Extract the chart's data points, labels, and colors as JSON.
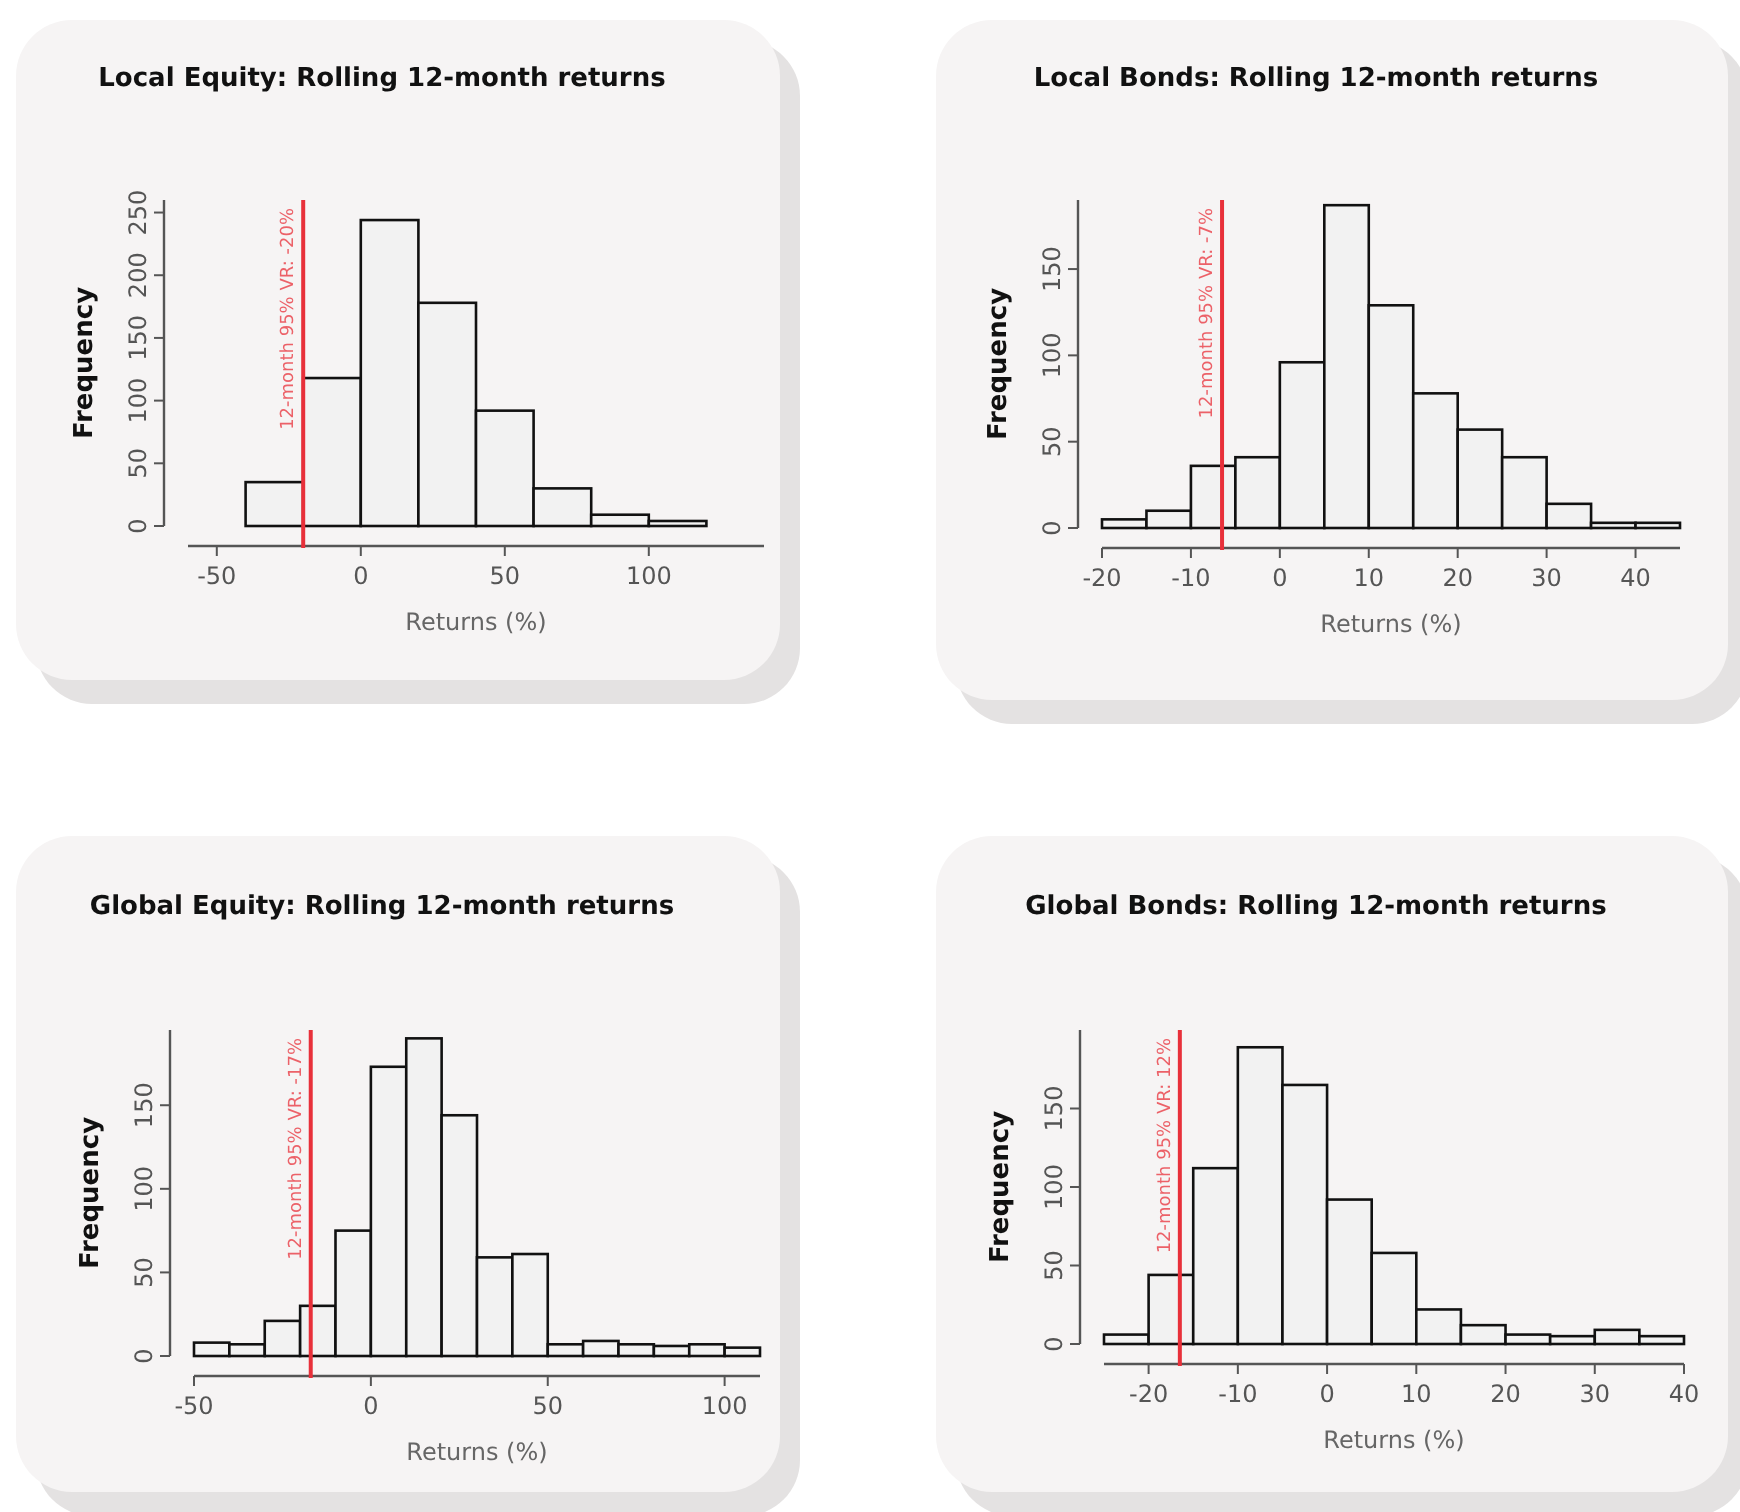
{
  "chart_data": [
    {
      "type": "histogram",
      "title": "Local Equity: Rolling 12-month returns",
      "xlabel": "Returns (%)",
      "ylabel": "Frequency",
      "bins": [
        -40,
        -20,
        0,
        20,
        40,
        60,
        80,
        100,
        120
      ],
      "values": [
        35,
        118,
        244,
        178,
        92,
        30,
        9,
        4
      ],
      "color": "#f2f2f2",
      "xlim": [
        -60,
        140
      ],
      "xticks": [
        -50,
        0,
        50,
        100
      ],
      "ylim": [
        0,
        260
      ],
      "yticks": [
        0,
        50,
        100,
        150,
        200,
        250
      ],
      "ref_lines": [
        {
          "axis": "x",
          "value": -20,
          "label": "12-month 95% VR: -20%",
          "color": "#e8303a"
        }
      ]
    },
    {
      "type": "histogram",
      "title": "Local Bonds: Rolling 12-month returns",
      "xlabel": "Returns (%)",
      "ylabel": "Frequency",
      "bins": [
        -20,
        -15,
        -10,
        -5,
        0,
        5,
        10,
        15,
        20,
        25,
        30,
        35,
        40,
        45
      ],
      "values": [
        5,
        10,
        36,
        41,
        96,
        187,
        129,
        78,
        57,
        41,
        14,
        3,
        3
      ],
      "color": "#f2f2f2",
      "xlim": [
        -20,
        45
      ],
      "xticks": [
        -20,
        -10,
        0,
        10,
        20,
        30,
        40
      ],
      "ylim": [
        0,
        190
      ],
      "yticks": [
        0,
        50,
        100,
        150
      ],
      "ref_lines": [
        {
          "axis": "x",
          "value": -6.5,
          "label": "12-month 95% VR: -7%",
          "color": "#e8303a"
        }
      ]
    },
    {
      "type": "histogram",
      "title": "Global Equity: Rolling 12-month returns",
      "xlabel": "Returns (%)",
      "ylabel": "Frequency",
      "bins": [
        -50,
        -40,
        -30,
        -20,
        -10,
        0,
        10,
        20,
        30,
        40,
        50,
        60,
        70,
        80,
        90,
        100,
        110
      ],
      "values": [
        8,
        7,
        21,
        30,
        75,
        173,
        190,
        144,
        59,
        61,
        7,
        9,
        7,
        6,
        7,
        5
      ],
      "color": "#f2f2f2",
      "xlim": [
        -50,
        110
      ],
      "xticks": [
        -50,
        0,
        50,
        100
      ],
      "ylim": [
        0,
        195
      ],
      "yticks": [
        0,
        50,
        100,
        150
      ],
      "ref_lines": [
        {
          "axis": "x",
          "value": -17,
          "label": "12-month 95% VR: -17%",
          "color": "#e8303a"
        }
      ]
    },
    {
      "type": "histogram",
      "title": "Global Bonds: Rolling 12-month returns",
      "xlabel": "Returns (%)",
      "ylabel": "Frequency",
      "bins": [
        -25,
        -20,
        -15,
        -10,
        -5,
        0,
        5,
        10,
        15,
        20,
        25,
        30,
        35,
        40
      ],
      "values": [
        6,
        44,
        112,
        189,
        165,
        92,
        58,
        22,
        12,
        6,
        5,
        9,
        5
      ],
      "color": "#f2f2f2",
      "xlim": [
        -25,
        40
      ],
      "xticks": [
        -20,
        -10,
        0,
        10,
        20,
        30,
        40
      ],
      "ylim": [
        0,
        200
      ],
      "yticks": [
        0,
        50,
        100,
        150
      ],
      "ref_lines": [
        {
          "axis": "x",
          "value": -16.5,
          "color": "#e8303a"
        }
      ],
      "annotations": [
        "12-month 95% VR: 12%"
      ]
    }
  ]
}
